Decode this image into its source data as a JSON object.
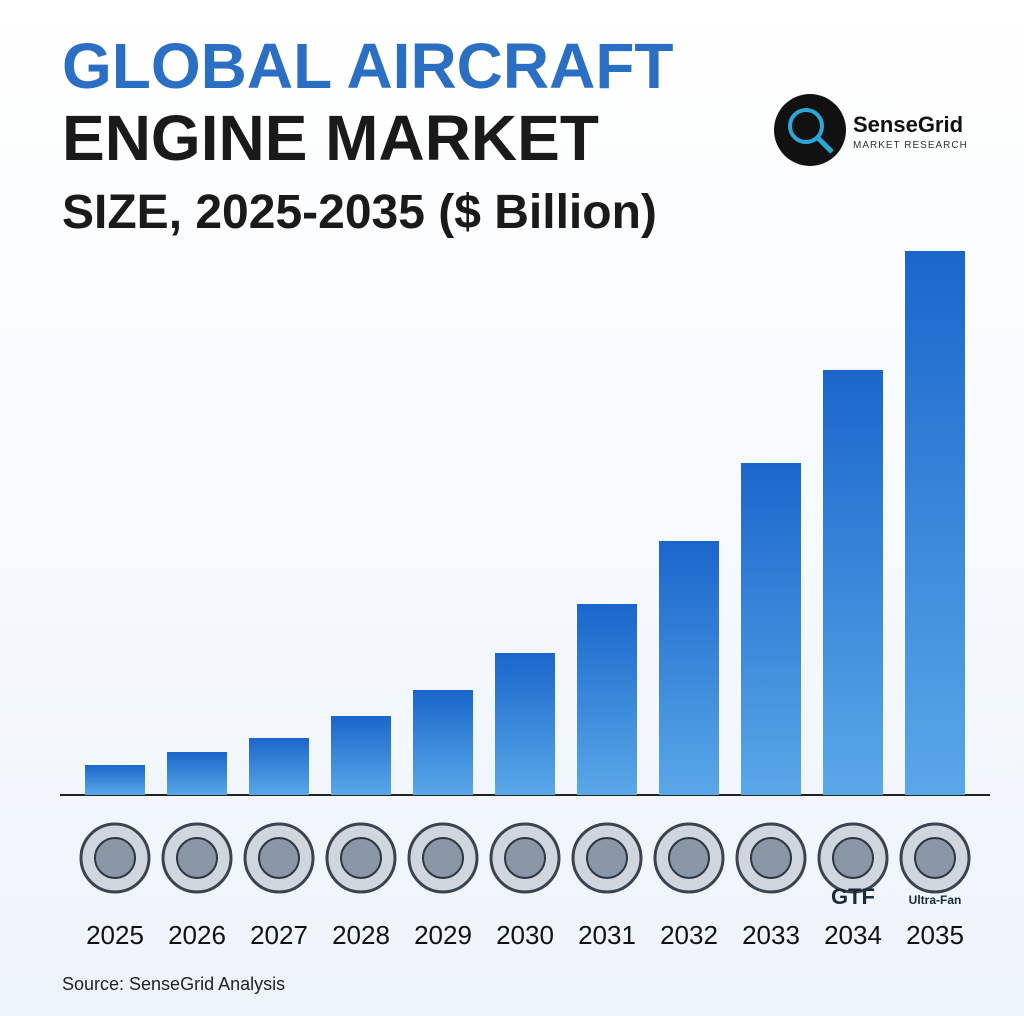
{
  "chart_data": {
    "type": "bar",
    "title": [
      "GLOBAL AIRCRAFT",
      "ENGINE MARKET",
      "SIZE, 2025-2035 ($ Billion)"
    ],
    "categories": [
      "2025",
      "2026",
      "2027",
      "2028",
      "2029",
      "2030",
      "2031",
      "2032",
      "2033",
      "2034",
      "2035"
    ],
    "values": [
      6,
      8.6,
      11.4,
      15.8,
      21,
      28.4,
      38.2,
      50.8,
      66.4,
      85,
      108.8
    ],
    "color": "#1a66cc",
    "ylim": [
      0,
      120
    ],
    "annotations": [
      "GTF",
      "Ultra-Fan"
    ],
    "logo": {
      "name": "SenseGrid",
      "tagline": "MARKET RESEARCH"
    },
    "source": "Source: SenseGrid Analysis"
  }
}
